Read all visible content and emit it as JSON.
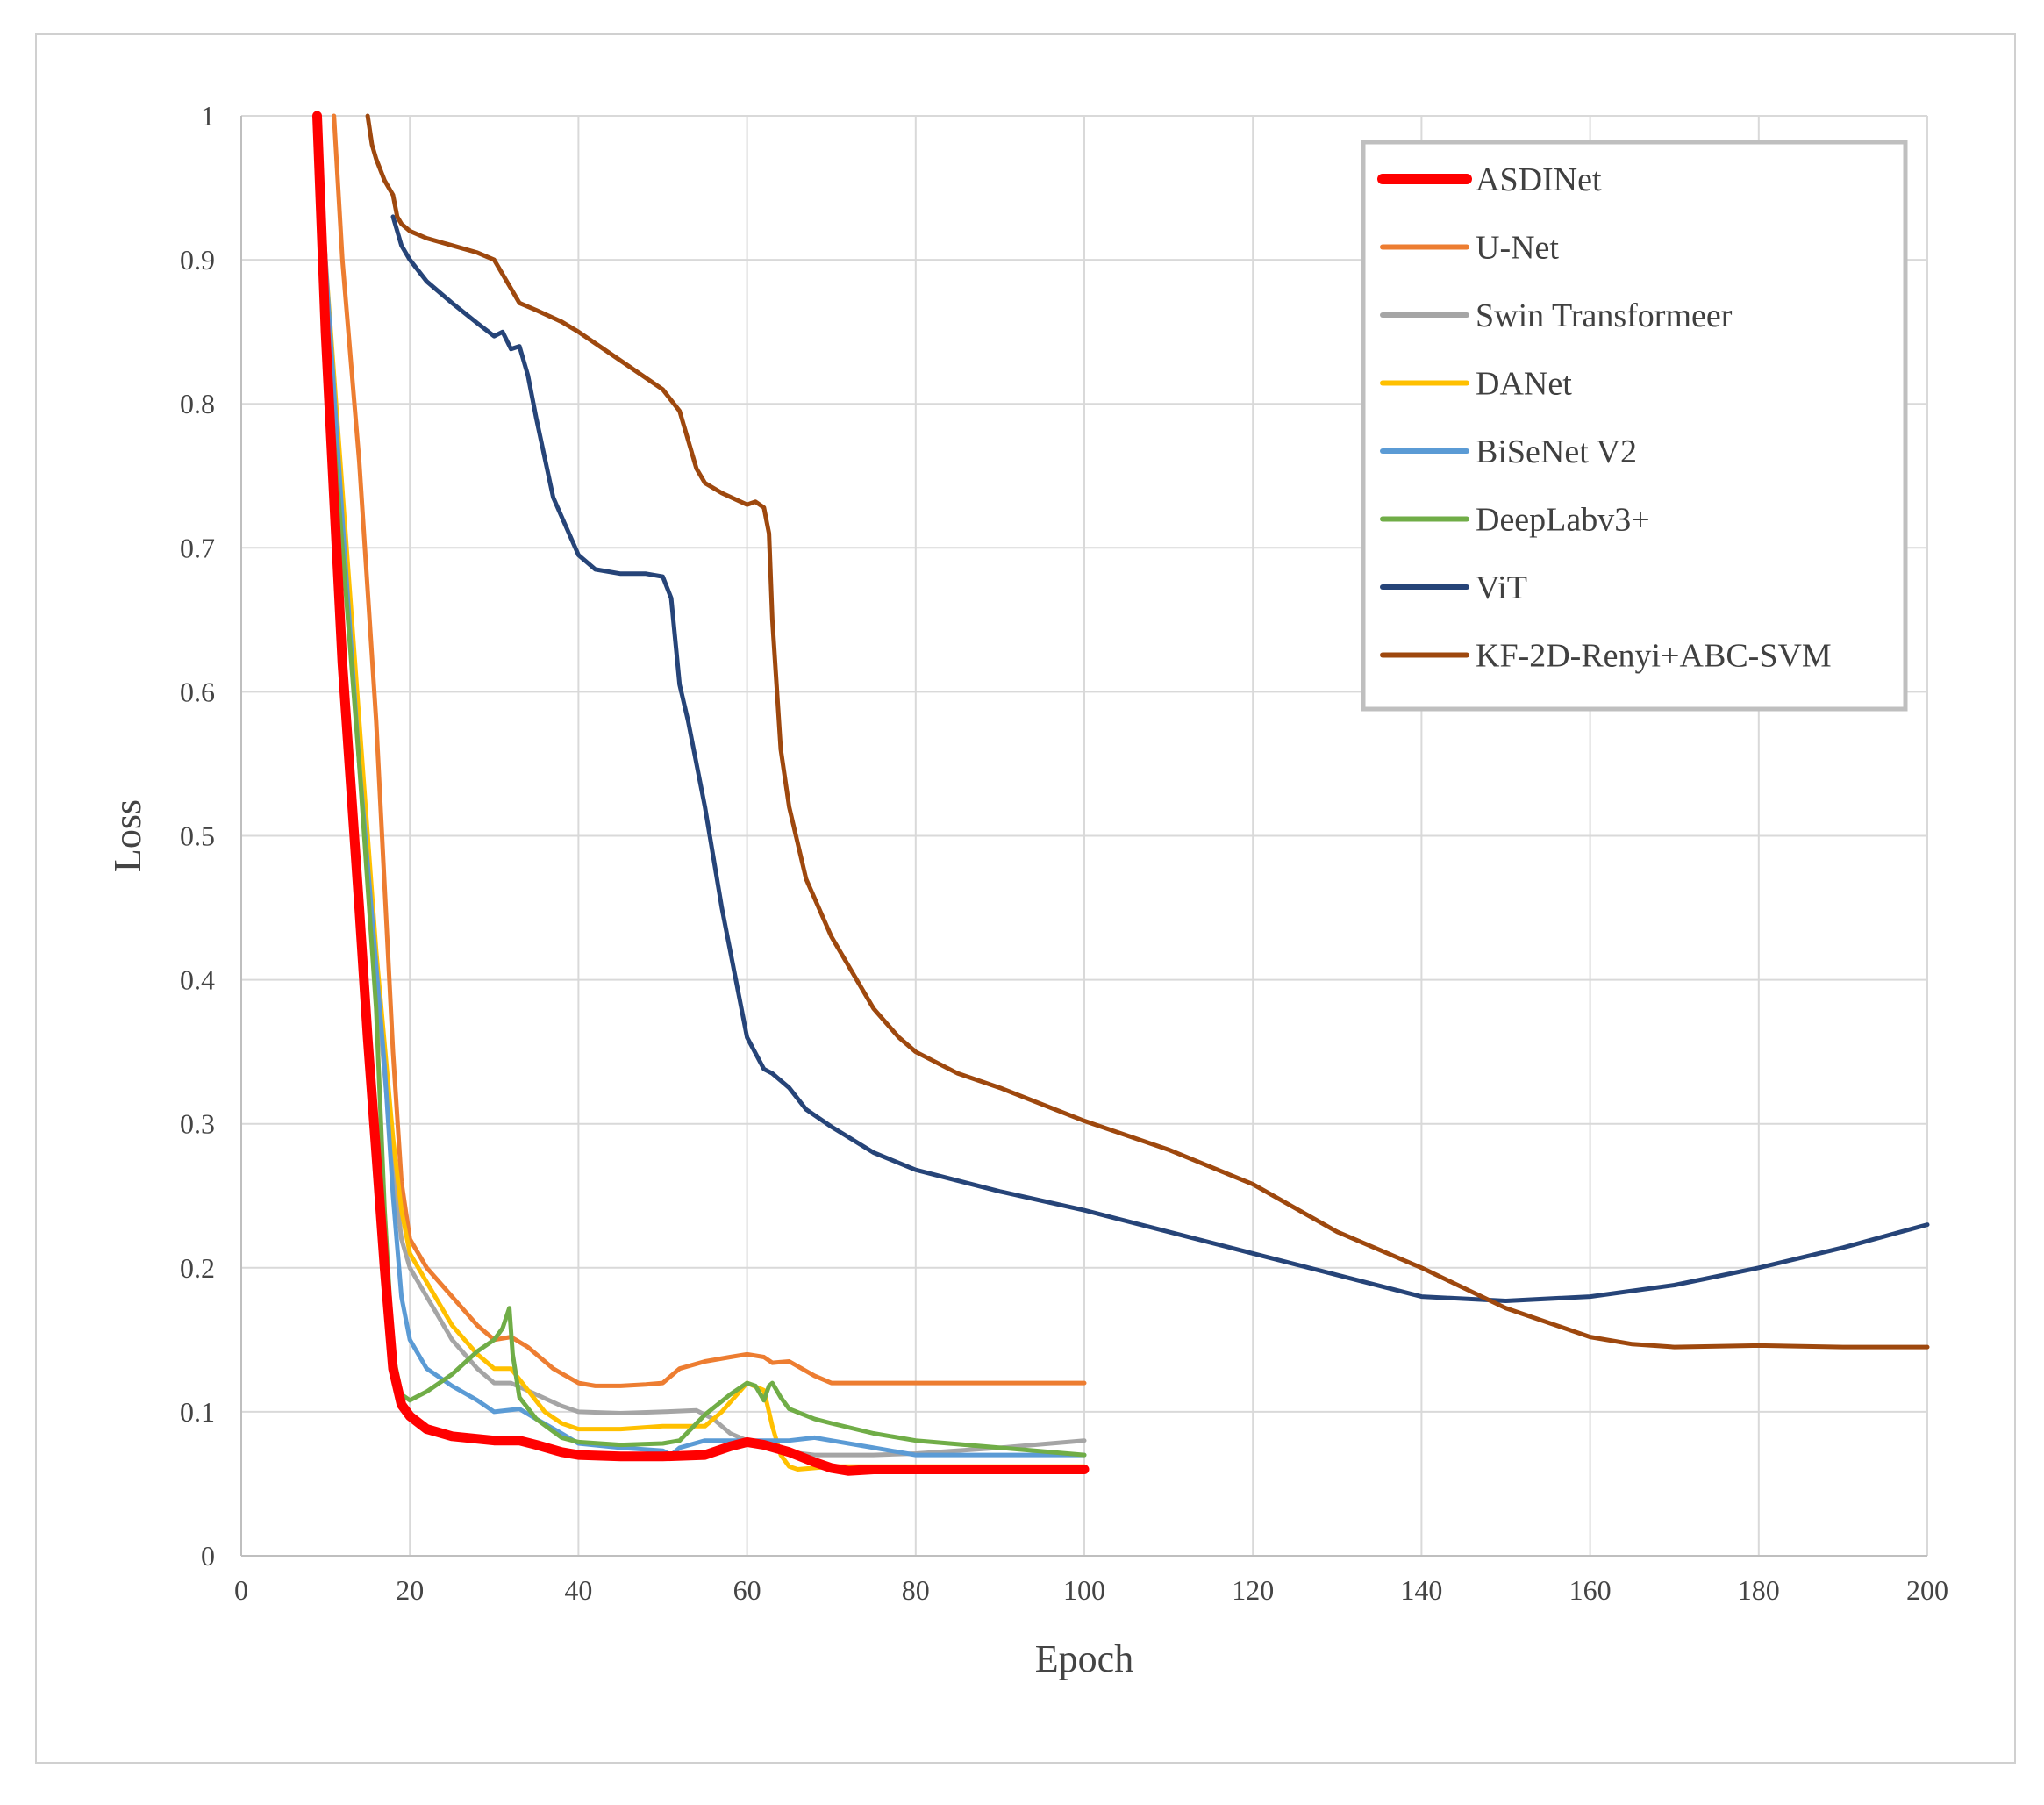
{
  "chart_data": {
    "type": "line",
    "title": "",
    "xlabel": "Epoch",
    "ylabel": "Loss",
    "xlim": [
      0,
      200
    ],
    "ylim": [
      0,
      1
    ],
    "xticks": [
      "0",
      "20",
      "40",
      "60",
      "80",
      "100",
      "120",
      "140",
      "160",
      "180",
      "200"
    ],
    "yticks": [
      "0",
      "0.1",
      "0.2",
      "0.3",
      "0.4",
      "0.5",
      "0.6",
      "0.7",
      "0.8",
      "0.9",
      "1"
    ],
    "grid": true,
    "legend_position": "top-right",
    "series": [
      {
        "name": "ASDINet",
        "color": "#ff0000",
        "emphasis": true,
        "x": [
          9,
          10,
          12,
          14,
          15,
          16,
          17,
          18,
          19,
          20,
          22,
          25,
          30,
          33,
          35,
          38,
          40,
          45,
          50,
          55,
          58,
          60,
          62,
          65,
          68,
          70,
          72,
          75,
          80,
          90,
          100
        ],
        "y": [
          1.0,
          0.85,
          0.62,
          0.45,
          0.36,
          0.28,
          0.2,
          0.13,
          0.105,
          0.097,
          0.088,
          0.083,
          0.08,
          0.08,
          0.077,
          0.072,
          0.07,
          0.069,
          0.069,
          0.07,
          0.076,
          0.079,
          0.077,
          0.072,
          0.065,
          0.061,
          0.059,
          0.06,
          0.06,
          0.06,
          0.06
        ]
      },
      {
        "name": "U-Net",
        "color": "#ed7d31",
        "x": [
          11,
          12,
          14,
          16,
          18,
          19,
          20,
          22,
          25,
          28,
          30,
          32,
          34,
          37,
          40,
          42,
          45,
          48,
          50,
          52,
          55,
          58,
          60,
          62,
          63,
          65,
          68,
          70,
          75,
          80,
          90,
          100
        ],
        "y": [
          1.0,
          0.9,
          0.76,
          0.58,
          0.35,
          0.26,
          0.22,
          0.2,
          0.18,
          0.16,
          0.15,
          0.152,
          0.145,
          0.13,
          0.12,
          0.118,
          0.118,
          0.119,
          0.12,
          0.13,
          0.135,
          0.138,
          0.14,
          0.138,
          0.134,
          0.135,
          0.125,
          0.12,
          0.12,
          0.12,
          0.12,
          0.12
        ]
      },
      {
        "name": "Swin Transformeer",
        "color": "#a5a5a5",
        "x": [
          9,
          10,
          12,
          14,
          16,
          18,
          19,
          20,
          22,
          25,
          28,
          30,
          32,
          35,
          38,
          40,
          45,
          50,
          54,
          56,
          58,
          60,
          63,
          65,
          68,
          70,
          75,
          80,
          90,
          100
        ],
        "y": [
          1.0,
          0.88,
          0.72,
          0.56,
          0.4,
          0.27,
          0.22,
          0.2,
          0.18,
          0.15,
          0.13,
          0.12,
          0.12,
          0.112,
          0.104,
          0.1,
          0.099,
          0.1,
          0.101,
          0.095,
          0.085,
          0.08,
          0.075,
          0.072,
          0.07,
          0.07,
          0.07,
          0.071,
          0.075,
          0.08
        ]
      },
      {
        "name": "DANet",
        "color": "#ffc000",
        "x": [
          9,
          10,
          12,
          14,
          16,
          18,
          19,
          20,
          22,
          25,
          28,
          30,
          31,
          32,
          34,
          36,
          38,
          40,
          45,
          50,
          53,
          55,
          57,
          60,
          62,
          63,
          64,
          65,
          66,
          68,
          70,
          75,
          80,
          90,
          100
        ],
        "y": [
          1.0,
          0.9,
          0.74,
          0.58,
          0.42,
          0.29,
          0.24,
          0.21,
          0.19,
          0.16,
          0.14,
          0.13,
          0.13,
          0.13,
          0.115,
          0.1,
          0.092,
          0.088,
          0.088,
          0.09,
          0.09,
          0.09,
          0.1,
          0.12,
          0.115,
          0.09,
          0.07,
          0.062,
          0.06,
          0.061,
          0.062,
          0.062,
          0.062,
          0.062,
          0.062
        ]
      },
      {
        "name": "BiSeNet V2",
        "color": "#5b9bd5",
        "x": [
          9,
          10,
          12,
          14,
          16,
          17,
          18,
          19,
          20,
          22,
          25,
          28,
          30,
          33,
          35,
          38,
          40,
          45,
          50,
          51,
          52,
          55,
          58,
          60,
          62,
          65,
          68,
          70,
          75,
          80,
          90,
          100
        ],
        "y": [
          1.0,
          0.9,
          0.72,
          0.55,
          0.41,
          0.34,
          0.25,
          0.18,
          0.15,
          0.13,
          0.118,
          0.108,
          0.1,
          0.102,
          0.095,
          0.085,
          0.078,
          0.075,
          0.073,
          0.07,
          0.075,
          0.08,
          0.08,
          0.08,
          0.08,
          0.08,
          0.082,
          0.08,
          0.075,
          0.07,
          0.07,
          0.07
        ]
      },
      {
        "name": "DeepLabv3+",
        "color": "#70ad47",
        "x": [
          9,
          10,
          12,
          14,
          16,
          17,
          18,
          19,
          20,
          22,
          25,
          28,
          30,
          31,
          31.8,
          32.2,
          33,
          35,
          38,
          40,
          45,
          50,
          52,
          55,
          58,
          60,
          61,
          62,
          62.6,
          63,
          64,
          65,
          68,
          70,
          75,
          80,
          90,
          100
        ],
        "y": [
          1.0,
          0.85,
          0.7,
          0.55,
          0.38,
          0.24,
          0.14,
          0.112,
          0.108,
          0.114,
          0.126,
          0.142,
          0.15,
          0.158,
          0.172,
          0.14,
          0.11,
          0.095,
          0.082,
          0.079,
          0.077,
          0.078,
          0.08,
          0.098,
          0.112,
          0.12,
          0.118,
          0.108,
          0.118,
          0.12,
          0.11,
          0.102,
          0.095,
          0.092,
          0.085,
          0.08,
          0.075,
          0.07
        ]
      },
      {
        "name": "ViT",
        "color": "#264478",
        "x": [
          18,
          19,
          20,
          22,
          25,
          28,
          30,
          31,
          32,
          33,
          34,
          35,
          37,
          40,
          42,
          45,
          48,
          50,
          51,
          52,
          53,
          55,
          57,
          60,
          62,
          63,
          65,
          67,
          70,
          75,
          80,
          90,
          100,
          120,
          140,
          150,
          160,
          170,
          180,
          190,
          200
        ],
        "y": [
          0.93,
          0.91,
          0.9,
          0.885,
          0.87,
          0.856,
          0.847,
          0.85,
          0.838,
          0.84,
          0.82,
          0.79,
          0.735,
          0.695,
          0.685,
          0.682,
          0.682,
          0.68,
          0.665,
          0.605,
          0.58,
          0.52,
          0.45,
          0.36,
          0.338,
          0.335,
          0.325,
          0.31,
          0.298,
          0.28,
          0.268,
          0.253,
          0.24,
          0.21,
          0.18,
          0.177,
          0.18,
          0.188,
          0.2,
          0.214,
          0.23
        ]
      },
      {
        "name": "KF-2D-Renyi+ABC-SVM",
        "color": "#9e480e",
        "x": [
          15,
          15.5,
          16,
          17,
          18,
          18.5,
          19,
          20,
          22,
          25,
          28,
          30,
          31,
          32,
          33,
          35,
          38,
          40,
          45,
          50,
          52,
          53,
          54,
          55,
          57,
          60,
          61,
          62,
          62.6,
          63,
          64,
          65,
          67,
          70,
          75,
          78,
          80,
          85,
          90,
          100,
          110,
          120,
          130,
          140,
          150,
          160,
          165,
          170,
          180,
          190,
          200
        ],
        "y": [
          1.0,
          0.98,
          0.97,
          0.955,
          0.945,
          0.93,
          0.925,
          0.92,
          0.915,
          0.91,
          0.905,
          0.9,
          0.89,
          0.88,
          0.87,
          0.865,
          0.857,
          0.85,
          0.83,
          0.81,
          0.795,
          0.775,
          0.755,
          0.745,
          0.738,
          0.73,
          0.732,
          0.728,
          0.71,
          0.65,
          0.56,
          0.52,
          0.47,
          0.43,
          0.38,
          0.36,
          0.35,
          0.335,
          0.325,
          0.302,
          0.282,
          0.258,
          0.225,
          0.2,
          0.172,
          0.152,
          0.147,
          0.145,
          0.146,
          0.145,
          0.145
        ]
      }
    ]
  }
}
